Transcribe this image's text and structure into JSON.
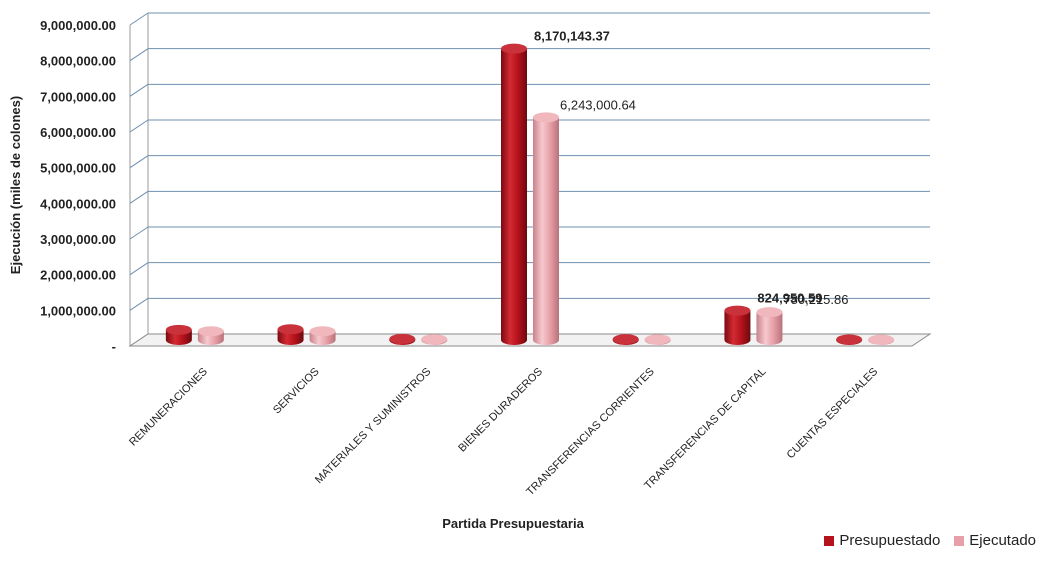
{
  "chart_data": {
    "type": "bar",
    "title": "",
    "xlabel": "Partida Presupuestaria",
    "ylabel": "Ejecución (miles de colones)",
    "ylim": [
      0,
      9000000
    ],
    "yticks": [
      "-",
      "1,000,000.00",
      "2,000,000.00",
      "3,000,000.00",
      "4,000,000.00",
      "5,000,000.00",
      "6,000,000.00",
      "7,000,000.00",
      "8,000,000.00",
      "9,000,000.00"
    ],
    "categories": [
      "REMUNERACIONES",
      "SERVICIOS",
      "MATERIALES Y SUMINISTROS",
      "BIENES DURADEROS",
      "TRANSFERENCIAS CORRIENTES",
      "TRANSFERENCIAS DE CAPITAL",
      "CUENTAS ESPECIALES"
    ],
    "series": [
      {
        "name": "Presupuestado",
        "color": "#b5121b",
        "values": [
          285000,
          300000,
          30000,
          8170143.37,
          25000,
          824950.59,
          15000
        ],
        "labels": [
          "",
          "",
          "",
          "8,170,143.37",
          "",
          "824,950.59",
          ""
        ]
      },
      {
        "name": "Ejecutado",
        "color": "#e8a0a8",
        "values": [
          245000,
          245000,
          22000,
          6243000.64,
          18000,
          780215.86,
          10000
        ],
        "labels": [
          "",
          "",
          "",
          "6,243,000.64",
          "",
          "780,215.86",
          ""
        ]
      }
    ],
    "grid": true,
    "legend_position": "bottom-right"
  }
}
